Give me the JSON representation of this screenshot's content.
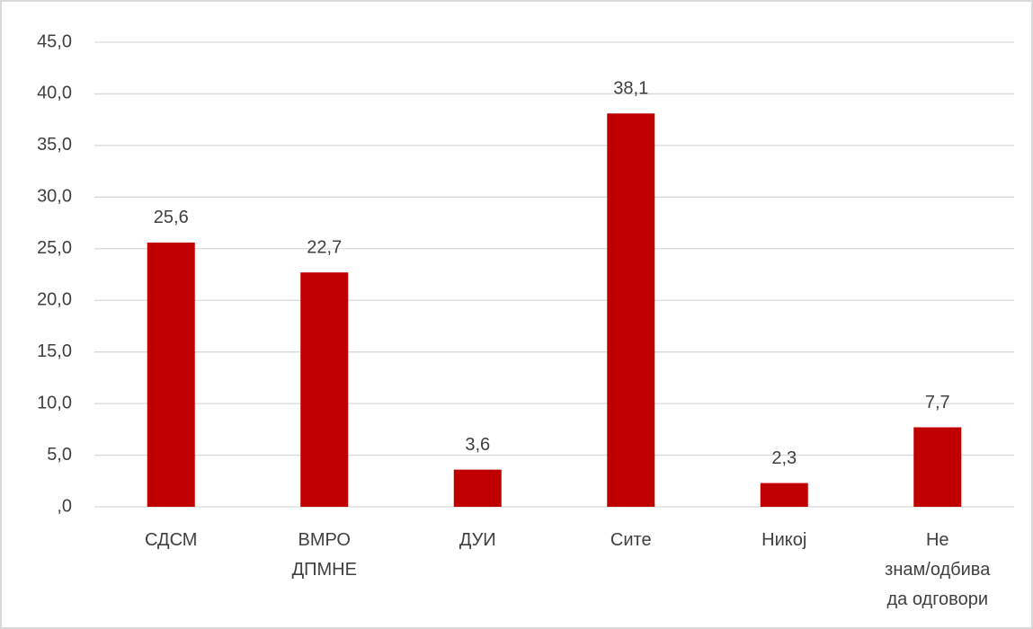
{
  "chart_data": {
    "type": "bar",
    "categories": [
      "СДСМ",
      "ВМРО\nДПМНЕ",
      "ДУИ",
      "Сите",
      "Никој",
      "Не\nзнам/одбива\nда одговори"
    ],
    "values": [
      25.6,
      22.7,
      3.6,
      38.1,
      2.3,
      7.7
    ],
    "value_labels": [
      "25,6",
      "22,7",
      "3,6",
      "38,1",
      "2,3",
      "7,7"
    ],
    "color": "#c00000",
    "ylim": [
      0,
      45
    ],
    "yticks": [
      {
        "value": 0,
        "label": ",0"
      },
      {
        "value": 5,
        "label": "5,0"
      },
      {
        "value": 10,
        "label": "10,0"
      },
      {
        "value": 15,
        "label": "15,0"
      },
      {
        "value": 20,
        "label": "20,0"
      },
      {
        "value": 25,
        "label": "25,0"
      },
      {
        "value": 30,
        "label": "30,0"
      },
      {
        "value": 35,
        "label": "35,0"
      },
      {
        "value": 40,
        "label": "40,0"
      },
      {
        "value": 45,
        "label": "45,0"
      }
    ],
    "grid": true
  }
}
